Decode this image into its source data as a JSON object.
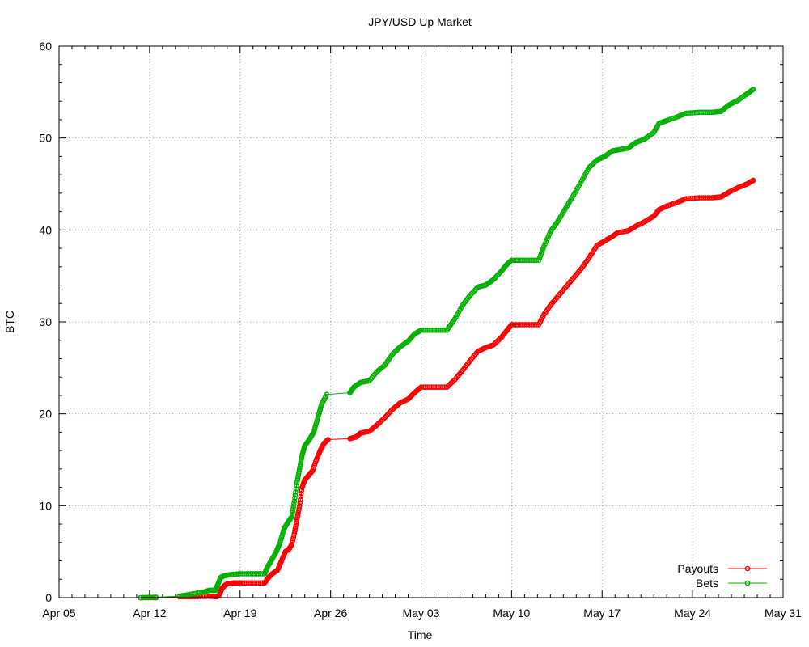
{
  "chart_data": {
    "type": "line",
    "title": "JPY/USD Up Market",
    "xlabel": "Time",
    "ylabel": "BTC",
    "x_unit": "days since Apr 05",
    "xlim": [
      0,
      56
    ],
    "ylim": [
      0,
      60
    ],
    "x_ticks": [
      {
        "value": 0,
        "label": "Apr 05"
      },
      {
        "value": 7,
        "label": "Apr 12"
      },
      {
        "value": 14,
        "label": "Apr 19"
      },
      {
        "value": 21,
        "label": "Apr 26"
      },
      {
        "value": 28,
        "label": "May 03"
      },
      {
        "value": 35,
        "label": "May 10"
      },
      {
        "value": 42,
        "label": "May 17"
      },
      {
        "value": 49,
        "label": "May 24"
      },
      {
        "value": 56,
        "label": "May 31"
      }
    ],
    "y_ticks": [
      0,
      10,
      20,
      30,
      40,
      50,
      60
    ],
    "grid": true,
    "legend_position": "bottom-right",
    "series": [
      {
        "name": "Payouts",
        "color": "#ff0000",
        "points": [
          [
            6.3,
            0.0
          ],
          [
            7.5,
            0.0
          ],
          [
            9.3,
            0.1
          ],
          [
            10.3,
            0.1
          ],
          [
            11.6,
            0.15
          ],
          [
            12.2,
            0.1
          ],
          [
            12.4,
            0.3
          ],
          [
            12.6,
            1.0
          ],
          [
            12.8,
            1.3
          ],
          [
            13.0,
            1.5
          ],
          [
            13.5,
            1.6
          ],
          [
            14.0,
            1.6
          ],
          [
            15.0,
            1.6
          ],
          [
            15.9,
            1.6
          ],
          [
            16.2,
            2.2
          ],
          [
            16.5,
            2.6
          ],
          [
            16.9,
            3.0
          ],
          [
            17.2,
            4.0
          ],
          [
            17.5,
            5.0
          ],
          [
            17.8,
            5.3
          ],
          [
            18.0,
            5.8
          ],
          [
            18.2,
            7.0
          ],
          [
            18.4,
            8.5
          ],
          [
            18.6,
            10.0
          ],
          [
            18.8,
            12.0
          ],
          [
            19.0,
            12.8
          ],
          [
            19.3,
            13.3
          ],
          [
            19.6,
            13.8
          ],
          [
            19.9,
            15.0
          ],
          [
            20.2,
            16.0
          ],
          [
            20.5,
            16.8
          ],
          [
            20.8,
            17.2
          ],
          [
            22.5,
            17.3
          ],
          [
            23.0,
            17.5
          ],
          [
            23.3,
            17.9
          ],
          [
            24.0,
            18.1
          ],
          [
            24.6,
            18.8
          ],
          [
            25.2,
            19.6
          ],
          [
            25.8,
            20.5
          ],
          [
            26.4,
            21.2
          ],
          [
            27.0,
            21.6
          ],
          [
            27.5,
            22.3
          ],
          [
            28.0,
            22.9
          ],
          [
            29.0,
            22.9
          ],
          [
            30.0,
            22.9
          ],
          [
            30.6,
            23.7
          ],
          [
            31.2,
            24.7
          ],
          [
            31.8,
            25.8
          ],
          [
            32.4,
            26.8
          ],
          [
            33.0,
            27.2
          ],
          [
            33.6,
            27.5
          ],
          [
            34.2,
            28.3
          ],
          [
            34.6,
            29.0
          ],
          [
            35.0,
            29.7
          ],
          [
            36.0,
            29.7
          ],
          [
            37.1,
            29.7
          ],
          [
            37.5,
            30.8
          ],
          [
            38.0,
            31.8
          ],
          [
            38.6,
            32.8
          ],
          [
            39.2,
            33.8
          ],
          [
            39.8,
            34.8
          ],
          [
            40.4,
            35.8
          ],
          [
            41.0,
            37.0
          ],
          [
            41.6,
            38.3
          ],
          [
            42.2,
            38.8
          ],
          [
            42.8,
            39.3
          ],
          [
            43.2,
            39.7
          ],
          [
            44.0,
            39.9
          ],
          [
            44.6,
            40.4
          ],
          [
            45.3,
            40.9
          ],
          [
            46.0,
            41.5
          ],
          [
            46.4,
            42.2
          ],
          [
            47.0,
            42.6
          ],
          [
            47.8,
            43.0
          ],
          [
            48.5,
            43.4
          ],
          [
            49.5,
            43.5
          ],
          [
            50.5,
            43.5
          ],
          [
            51.2,
            43.6
          ],
          [
            51.8,
            44.1
          ],
          [
            52.5,
            44.6
          ],
          [
            53.2,
            45.0
          ],
          [
            53.7,
            45.4
          ]
        ]
      },
      {
        "name": "Bets",
        "color": "#00b000",
        "points": [
          [
            6.3,
            0.0
          ],
          [
            7.5,
            0.05
          ],
          [
            9.3,
            0.15
          ],
          [
            10.3,
            0.4
          ],
          [
            11.2,
            0.6
          ],
          [
            11.6,
            0.8
          ],
          [
            12.1,
            0.8
          ],
          [
            12.3,
            1.5
          ],
          [
            12.5,
            2.2
          ],
          [
            12.8,
            2.4
          ],
          [
            13.2,
            2.5
          ],
          [
            14.0,
            2.6
          ],
          [
            15.0,
            2.6
          ],
          [
            15.9,
            2.6
          ],
          [
            16.1,
            3.3
          ],
          [
            16.4,
            4.0
          ],
          [
            16.8,
            5.0
          ],
          [
            17.1,
            6.0
          ],
          [
            17.4,
            7.5
          ],
          [
            17.7,
            8.2
          ],
          [
            18.0,
            8.8
          ],
          [
            18.2,
            10.5
          ],
          [
            18.4,
            12.5
          ],
          [
            18.6,
            14.0
          ],
          [
            18.8,
            15.5
          ],
          [
            19.0,
            16.5
          ],
          [
            19.4,
            17.3
          ],
          [
            19.7,
            18.0
          ],
          [
            20.0,
            19.5
          ],
          [
            20.3,
            21.0
          ],
          [
            20.7,
            22.1
          ],
          [
            22.5,
            22.3
          ],
          [
            22.8,
            22.9
          ],
          [
            23.3,
            23.4
          ],
          [
            24.0,
            23.6
          ],
          [
            24.6,
            24.6
          ],
          [
            25.2,
            25.3
          ],
          [
            25.8,
            26.5
          ],
          [
            26.4,
            27.3
          ],
          [
            27.0,
            27.9
          ],
          [
            27.5,
            28.7
          ],
          [
            28.0,
            29.1
          ],
          [
            29.0,
            29.1
          ],
          [
            30.0,
            29.1
          ],
          [
            30.6,
            30.3
          ],
          [
            31.2,
            31.8
          ],
          [
            31.8,
            32.9
          ],
          [
            32.4,
            33.8
          ],
          [
            33.0,
            34.0
          ],
          [
            33.6,
            34.6
          ],
          [
            34.2,
            35.5
          ],
          [
            34.6,
            36.2
          ],
          [
            35.0,
            36.7
          ],
          [
            36.0,
            36.7
          ],
          [
            37.1,
            36.7
          ],
          [
            37.5,
            38.2
          ],
          [
            38.0,
            39.8
          ],
          [
            38.6,
            41.0
          ],
          [
            39.2,
            42.4
          ],
          [
            39.8,
            43.8
          ],
          [
            40.4,
            45.3
          ],
          [
            41.0,
            46.8
          ],
          [
            41.6,
            47.6
          ],
          [
            42.2,
            48.0
          ],
          [
            42.8,
            48.6
          ],
          [
            43.2,
            48.7
          ],
          [
            44.0,
            48.9
          ],
          [
            44.6,
            49.5
          ],
          [
            45.3,
            49.9
          ],
          [
            46.0,
            50.6
          ],
          [
            46.4,
            51.6
          ],
          [
            47.0,
            51.9
          ],
          [
            47.8,
            52.3
          ],
          [
            48.5,
            52.7
          ],
          [
            49.5,
            52.8
          ],
          [
            50.5,
            52.8
          ],
          [
            51.2,
            52.9
          ],
          [
            51.8,
            53.6
          ],
          [
            52.5,
            54.1
          ],
          [
            53.2,
            54.8
          ],
          [
            53.7,
            55.3
          ]
        ]
      }
    ]
  }
}
